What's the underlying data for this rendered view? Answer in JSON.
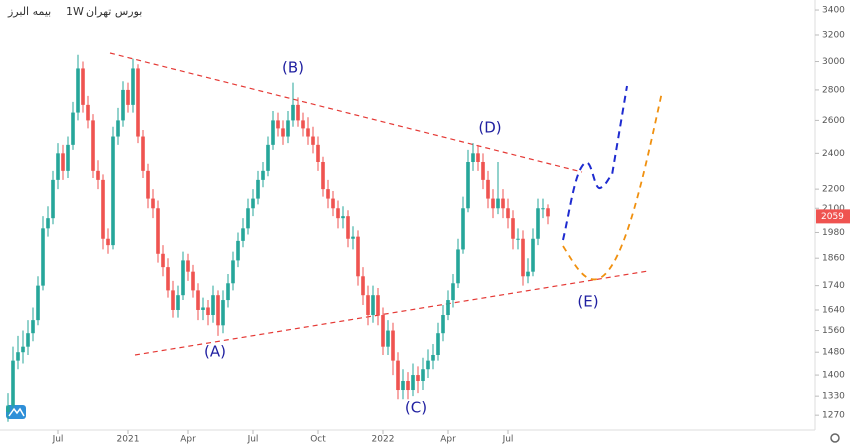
{
  "chart_data": {
    "type": "candlestick",
    "symbol": "بیمه البرز",
    "interval": "1W",
    "exchange": "بورس تهران",
    "annotations": [
      "(A)",
      "(B)",
      "(C)",
      "(D)",
      "(E)"
    ],
    "up_color": "#26a69a",
    "down_color": "#ef5350",
    "log_scale": true,
    "grid": false,
    "open": [
      1280,
      1300,
      1450,
      1480,
      1500,
      1550,
      1600,
      1740,
      2000,
      2050,
      2250,
      2400,
      2300,
      2450,
      2650,
      2950,
      2700,
      2600,
      2300,
      2250,
      1950,
      1920,
      2500,
      2600,
      2800,
      2700,
      2950,
      2500,
      2300,
      2150,
      2100,
      1880,
      1820,
      1720,
      1640,
      1700,
      1850,
      1800,
      1720,
      1640,
      1650,
      1620,
      1700,
      1580,
      1680,
      1750,
      1850,
      1940,
      2000,
      2100,
      2150,
      2250,
      2300,
      2450,
      2600,
      2550,
      2500,
      2600,
      2700,
      2600,
      2550,
      2500,
      2450,
      2350,
      2200,
      2150,
      2100,
      2050,
      2060,
      1950,
      1960,
      1780,
      1700,
      1620,
      1700,
      1620,
      1500,
      1560,
      1450,
      1350,
      1380,
      1350,
      1400,
      1380,
      1420,
      1450,
      1470,
      1550,
      1620,
      1680,
      1750,
      1900,
      2100,
      2350,
      2400,
      2350,
      2250,
      2150,
      2100,
      2150,
      2100,
      2050,
      1950,
      1950,
      1780,
      1800,
      1950,
      2100,
      2100
    ],
    "high": [
      1340,
      1500,
      1540,
      1560,
      1600,
      1650,
      1780,
      2060,
      2110,
      2300,
      2460,
      2450,
      2500,
      2720,
      3050,
      3000,
      2760,
      2640,
      2360,
      2280,
      2000,
      2560,
      2680,
      2860,
      2850,
      3020,
      2980,
      2540,
      2340,
      2200,
      2140,
      1920,
      1860,
      1760,
      1740,
      1890,
      1880,
      1830,
      1750,
      1690,
      1680,
      1740,
      1720,
      1720,
      1790,
      1890,
      1980,
      2050,
      2150,
      2200,
      2300,
      2350,
      2500,
      2660,
      2650,
      2600,
      2660,
      2850,
      2750,
      2650,
      2620,
      2560,
      2500,
      2380,
      2250,
      2190,
      2140,
      2110,
      2090,
      2010,
      1990,
      1820,
      1740,
      1740,
      1730,
      1650,
      1600,
      1590,
      1480,
      1420,
      1410,
      1440,
      1430,
      1460,
      1490,
      1510,
      1590,
      1660,
      1720,
      1790,
      1950,
      2160,
      2420,
      2460,
      2450,
      2400,
      2300,
      2200,
      2350,
      2200,
      2150,
      2090,
      2000,
      1990,
      1860,
      2000,
      2150,
      2150,
      2120
    ],
    "low": [
      1250,
      1290,
      1420,
      1440,
      1470,
      1520,
      1580,
      1720,
      1960,
      2020,
      2200,
      2250,
      2260,
      2420,
      2600,
      2650,
      2550,
      2260,
      2200,
      1900,
      1880,
      1900,
      2450,
      2560,
      2650,
      2650,
      2460,
      2260,
      2100,
      2050,
      1840,
      1780,
      1690,
      1610,
      1610,
      1680,
      1760,
      1690,
      1600,
      1600,
      1580,
      1590,
      1540,
      1550,
      1650,
      1720,
      1820,
      1910,
      1970,
      2060,
      2120,
      2210,
      2270,
      2420,
      2500,
      2450,
      2460,
      2560,
      2560,
      2500,
      2450,
      2400,
      2300,
      2160,
      2100,
      2060,
      2000,
      2000,
      1910,
      1900,
      1740,
      1660,
      1580,
      1590,
      1580,
      1470,
      1470,
      1400,
      1320,
      1320,
      1320,
      1330,
      1340,
      1350,
      1390,
      1420,
      1450,
      1520,
      1600,
      1650,
      1730,
      1880,
      2080,
      2300,
      2300,
      2200,
      2100,
      2050,
      2070,
      2050,
      2000,
      1900,
      1900,
      1740,
      1750,
      1780,
      1920,
      2050,
      2020
    ],
    "close": [
      1300,
      1450,
      1480,
      1500,
      1550,
      1600,
      1740,
      2000,
      2050,
      2250,
      2400,
      2300,
      2450,
      2650,
      2950,
      2700,
      2600,
      2300,
      2250,
      1950,
      1920,
      2500,
      2600,
      2800,
      2700,
      2950,
      2500,
      2300,
      2150,
      2100,
      1880,
      1820,
      1720,
      1640,
      1700,
      1850,
      1800,
      1720,
      1640,
      1650,
      1620,
      1700,
      1580,
      1680,
      1750,
      1850,
      1940,
      2000,
      2100,
      2150,
      2250,
      2300,
      2450,
      2600,
      2550,
      2500,
      2600,
      2700,
      2600,
      2550,
      2500,
      2450,
      2350,
      2200,
      2150,
      2100,
      2050,
      2060,
      1950,
      1960,
      1780,
      1700,
      1620,
      1700,
      1620,
      1500,
      1560,
      1450,
      1350,
      1380,
      1350,
      1400,
      1380,
      1420,
      1450,
      1470,
      1550,
      1620,
      1680,
      1750,
      1900,
      2100,
      2350,
      2400,
      2350,
      2250,
      2150,
      2100,
      2150,
      2100,
      2050,
      1950,
      1950,
      1780,
      1800,
      1950,
      2100,
      2100,
      2059
    ],
    "ylim": [
      1225,
      3484
    ],
    "yticks": [
      1270,
      1330,
      1400,
      1480,
      1560,
      1640,
      1740,
      1860,
      1980,
      2100,
      2200,
      2400,
      2600,
      2800,
      3000,
      3200,
      3400
    ],
    "xticks": [
      {
        "value": 10,
        "label": "Jul"
      },
      {
        "value": 24,
        "label": "2021"
      },
      {
        "value": 36,
        "label": "Apr"
      },
      {
        "value": 49,
        "label": "Jul"
      },
      {
        "value": 62,
        "label": "Oct"
      },
      {
        "value": 75,
        "label": "2022"
      },
      {
        "value": 88,
        "label": "Apr"
      },
      {
        "value": 100,
        "label": "Jul"
      }
    ]
  }
}
